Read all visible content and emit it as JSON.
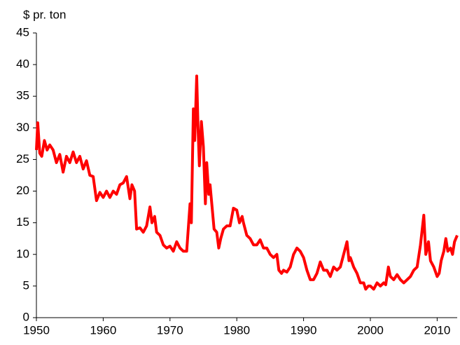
{
  "chart_data": {
    "type": "line",
    "y_label": "$ pr. ton",
    "xlim": [
      1950,
      2013
    ],
    "xticks": [
      1950,
      1960,
      1970,
      1980,
      1990,
      2000,
      2010
    ],
    "ylim": [
      0,
      45
    ],
    "yticks": [
      0,
      5,
      10,
      15,
      20,
      25,
      30,
      35,
      40,
      45
    ],
    "grid": false,
    "series": [
      {
        "color": "#ff0000",
        "x": [
          1950.0,
          1950.2,
          1950.5,
          1950.8,
          1951.2,
          1951.6,
          1952,
          1952.5,
          1953,
          1953.5,
          1954,
          1954.5,
          1955,
          1955.5,
          1956,
          1956.5,
          1957,
          1957.5,
          1958,
          1958.5,
          1959,
          1959.5,
          1960,
          1960.5,
          1961,
          1961.5,
          1962,
          1962.5,
          1963,
          1963.5,
          1964,
          1964.3,
          1964.7,
          1965,
          1965.5,
          1966,
          1966.5,
          1967,
          1967.3,
          1967.7,
          1968,
          1968.5,
          1969,
          1969.5,
          1970,
          1970.5,
          1971,
          1971.5,
          1972,
          1972.5,
          1973,
          1973.2,
          1973.5,
          1973.7,
          1974,
          1974.2,
          1974.4,
          1974.7,
          1975,
          1975.3,
          1975.5,
          1975.8,
          1976,
          1976.3,
          1976.6,
          1977,
          1977.3,
          1977.6,
          1978,
          1978.5,
          1979,
          1979.5,
          1980,
          1980.4,
          1980.8,
          1981,
          1981.5,
          1982,
          1982.5,
          1983,
          1983.5,
          1984,
          1984.5,
          1985,
          1985.5,
          1986,
          1986.3,
          1986.7,
          1987,
          1987.5,
          1988,
          1988.5,
          1989,
          1989.5,
          1990,
          1990.5,
          1991,
          1991.5,
          1992,
          1992.5,
          1993,
          1993.5,
          1994,
          1994.5,
          1995,
          1995.5,
          1996,
          1996.5,
          1996.8,
          1997,
          1997.5,
          1998,
          1998.5,
          1999,
          1999.3,
          1999.7,
          2000,
          2000.5,
          2001,
          2001.5,
          2002,
          2002.3,
          2002.7,
          2003,
          2003.5,
          2004,
          2004.5,
          2005,
          2005.5,
          2006,
          2006.5,
          2007,
          2007.5,
          2008,
          2008.3,
          2008.7,
          2009,
          2009.5,
          2010,
          2010.3,
          2010.6,
          2011,
          2011.3,
          2011.6,
          2012,
          2012.3,
          2012.6,
          2013
        ],
        "values": [
          26.5,
          30.8,
          26,
          25.5,
          28,
          26.5,
          27.3,
          26.5,
          24.5,
          25.8,
          23,
          25.5,
          24.5,
          26.2,
          24.5,
          25.5,
          23.5,
          24.8,
          22.5,
          22.3,
          18.5,
          19.8,
          19,
          20,
          19,
          20,
          19.5,
          21,
          21.3,
          22.3,
          18.8,
          21,
          20,
          14,
          14.2,
          13.5,
          14.5,
          17.5,
          15,
          16,
          13.5,
          13,
          11.5,
          11,
          11.3,
          10.5,
          12,
          11,
          10.5,
          10.5,
          18,
          15,
          33,
          28,
          38.2,
          30,
          24,
          31,
          27,
          18,
          24.5,
          19.5,
          21,
          17.5,
          14,
          13.5,
          11,
          12.5,
          14,
          14.5,
          14.5,
          17.3,
          17,
          15,
          16,
          15,
          13,
          12.5,
          11.5,
          11.5,
          12.3,
          11,
          11,
          10,
          9.5,
          10,
          7.5,
          7,
          7.5,
          7.2,
          8,
          10,
          11,
          10.5,
          9.5,
          7.5,
          6,
          6,
          7,
          8.8,
          7.5,
          7.5,
          6.5,
          8,
          7.5,
          8,
          10,
          12,
          9,
          9.5,
          8,
          7,
          5.5,
          5.5,
          4.5,
          5,
          5,
          4.5,
          5.5,
          5,
          5.5,
          5.2,
          8,
          6.5,
          6,
          6.8,
          6,
          5.5,
          6,
          6.5,
          7.5,
          8,
          11.5,
          16.2,
          10,
          12,
          9,
          8,
          6.5,
          7,
          9,
          10.5,
          12.5,
          10.5,
          11,
          10,
          12,
          13
        ]
      }
    ]
  }
}
